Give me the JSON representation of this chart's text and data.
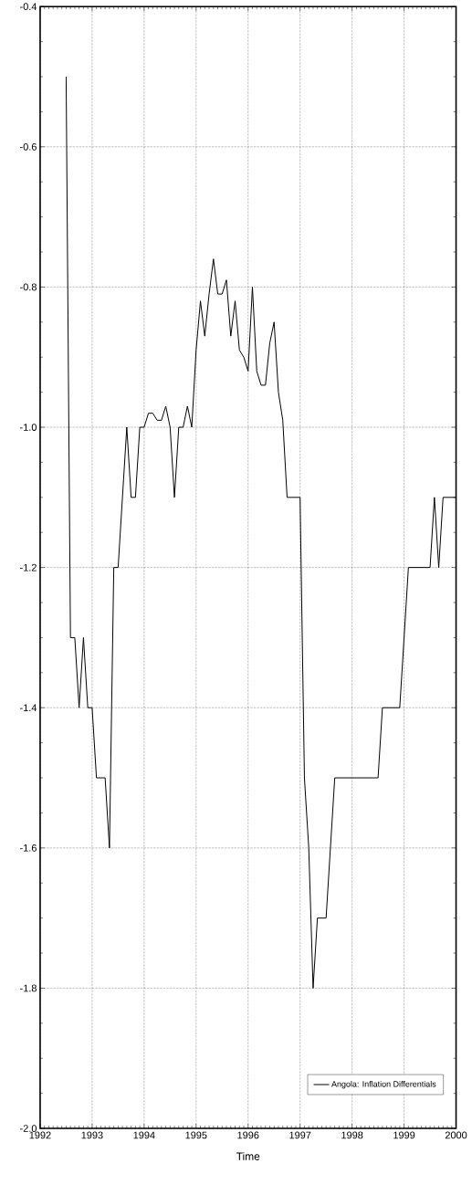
{
  "chart_data": {
    "type": "line",
    "xlabel": "Time",
    "x": [
      "1992-07",
      "1992-08",
      "1992-09",
      "1992-10",
      "1992-11",
      "1992-12",
      "1993-01",
      "1993-02",
      "1993-03",
      "1993-04",
      "1993-05",
      "1993-06",
      "1993-07",
      "1993-08",
      "1993-09",
      "1993-10",
      "1993-11",
      "1993-12",
      "1994-01",
      "1994-02",
      "1994-03",
      "1994-04",
      "1994-05",
      "1994-06",
      "1994-07",
      "1994-08",
      "1994-09",
      "1994-10",
      "1994-11",
      "1994-12",
      "1995-01",
      "1995-02",
      "1995-03",
      "1995-04",
      "1995-05",
      "1995-06",
      "1995-07",
      "1995-08",
      "1995-09",
      "1995-10",
      "1995-11",
      "1995-12",
      "1996-01",
      "1996-02",
      "1996-03",
      "1996-04",
      "1996-05",
      "1996-06",
      "1996-07",
      "1996-08",
      "1996-09",
      "1996-10",
      "1996-11",
      "1996-12",
      "1997-01",
      "1997-02",
      "1997-03",
      "1997-04",
      "1997-05",
      "1997-06",
      "1997-07",
      "1997-08",
      "1997-09",
      "1997-10",
      "1997-11",
      "1997-12",
      "1998-01",
      "1998-02",
      "1998-03",
      "1998-04",
      "1998-05",
      "1998-06",
      "1998-07",
      "1998-08",
      "1998-09",
      "1998-10",
      "1998-11",
      "1998-12",
      "1999-01",
      "1999-02",
      "1999-03",
      "1999-04",
      "1999-05",
      "1999-06",
      "1999-07",
      "1999-08",
      "1999-09",
      "1999-10",
      "1999-11",
      "1999-12",
      "2000-01"
    ],
    "series": [
      {
        "name": "Angola: Inflation Differentials",
        "color": "#000000",
        "values": [
          -0.5,
          -1.3,
          -1.3,
          -1.4,
          -1.3,
          -1.4,
          -1.4,
          -1.5,
          -1.5,
          -1.5,
          -1.6,
          -1.2,
          -1.2,
          -1.1,
          -1.0,
          -1.1,
          -1.1,
          -1.0,
          -1.0,
          -0.98,
          -0.98,
          -0.99,
          -0.99,
          -0.97,
          -1.0,
          -1.1,
          -1.0,
          -1.0,
          -0.97,
          -1.0,
          -0.89,
          -0.82,
          -0.87,
          -0.81,
          -0.76,
          -0.81,
          -0.81,
          -0.79,
          -0.87,
          -0.82,
          -0.89,
          -0.9,
          -0.92,
          -0.8,
          -0.92,
          -0.94,
          -0.94,
          -0.88,
          -0.85,
          -0.95,
          -0.99,
          -1.1,
          -1.1,
          -1.1,
          -1.1,
          -1.5,
          -1.6,
          -1.8,
          -1.7,
          -1.7,
          -1.7,
          -1.6,
          -1.5,
          -1.5,
          -1.5,
          -1.5,
          -1.5,
          -1.5,
          -1.5,
          -1.5,
          -1.5,
          -1.5,
          -1.5,
          -1.4,
          -1.4,
          -1.4,
          -1.4,
          -1.4,
          -1.3,
          -1.2,
          -1.2,
          -1.2,
          -1.2,
          -1.2,
          -1.2,
          -1.1,
          -1.2,
          -1.1,
          -1.1,
          -1.1,
          -1.1
        ]
      }
    ],
    "xlim": [
      "1992",
      "2000"
    ],
    "xticks": [
      "1992",
      "1993",
      "1994",
      "1995",
      "1996",
      "1997",
      "1998",
      "1999",
      "2000"
    ],
    "ylim": [
      -2.0,
      -0.4
    ],
    "yticks": [
      {
        "value": -2.0,
        "label": "-2.0"
      },
      {
        "value": -1.8,
        "label": "-1.8"
      },
      {
        "value": -1.6,
        "label": "-1.6"
      },
      {
        "value": -1.4,
        "label": "-1.4"
      },
      {
        "value": -1.2,
        "label": "-1.2"
      },
      {
        "value": -1.0,
        "label": "-1.0"
      },
      {
        "value": -0.8,
        "label": "-0.8"
      },
      {
        "value": -0.6,
        "label": "-0.6"
      },
      {
        "value": -0.4,
        "label": "-0.4"
      }
    ],
    "grid": true,
    "legend": "bottom right",
    "line_style": "solid"
  }
}
